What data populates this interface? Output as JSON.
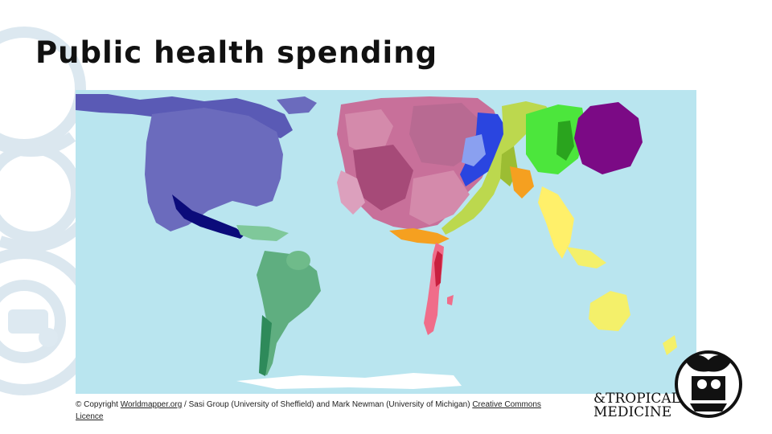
{
  "slide": {
    "title": "Public health spending"
  },
  "credit": {
    "prefix": "© Copyright ",
    "link_1": "Worldmapper.org",
    "middle": " / Sasi Group (University of Sheffield) and Mark Newman (University of Michigan) ",
    "link_2": "Creative Commons Licence"
  },
  "logo": {
    "line_1": "&TROPICAL",
    "line_2": "MEDICINE"
  },
  "colors": {
    "ocean": "#b9e5ef",
    "north_america": "#6b6bbd",
    "central_america": "#0b0b7a",
    "south_america": "#5fae80",
    "europe": "#c8709a",
    "africa": "#f06d8a",
    "middle_east": "#f5a020",
    "russia_central_asia": "#2a45e0",
    "south_asia": "#bcd84e",
    "east_asia": "#4ce63c",
    "japan": "#7b0a85",
    "southeast_asia": "#fff06a",
    "oceania": "#f4f06a"
  },
  "icons": {
    "background": "college-emblem-icon",
    "seal": "school-seal-icon"
  }
}
